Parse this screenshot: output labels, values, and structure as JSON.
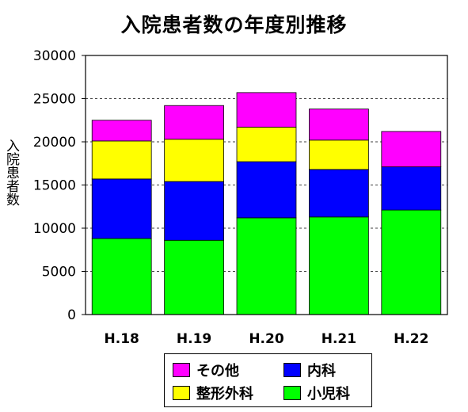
{
  "chart_data": {
    "type": "bar",
    "stacked": true,
    "title": "入院患者数の年度別推移",
    "xlabel": "",
    "ylabel": "入院患者数",
    "categories": [
      "H.18",
      "H.19",
      "H.20",
      "H.21",
      "H.22"
    ],
    "ylim": [
      0,
      30000
    ],
    "yticks": [
      0,
      5000,
      10000,
      15000,
      20000,
      25000,
      30000
    ],
    "grid": "horizontal-dashed",
    "legend_position": "bottom",
    "series": [
      {
        "name": "小児科",
        "color": "#00FF00",
        "values": [
          8800,
          8600,
          11200,
          11300,
          12100
        ]
      },
      {
        "name": "内科",
        "color": "#0000FF",
        "values": [
          6900,
          6800,
          6500,
          5500,
          5000
        ]
      },
      {
        "name": "整形外科",
        "color": "#FFFF00",
        "values": [
          4400,
          4900,
          4000,
          3400,
          0
        ]
      },
      {
        "name": "その他",
        "color": "#FF00FF",
        "values": [
          2400,
          3900,
          4000,
          3600,
          4100
        ]
      }
    ]
  },
  "legend": {
    "items": [
      {
        "label": "その他",
        "color": "#FF00FF"
      },
      {
        "label": "内科",
        "color": "#0000FF"
      },
      {
        "label": "整形外科",
        "color": "#FFFF00"
      },
      {
        "label": "小児科",
        "color": "#00FF00"
      }
    ]
  }
}
